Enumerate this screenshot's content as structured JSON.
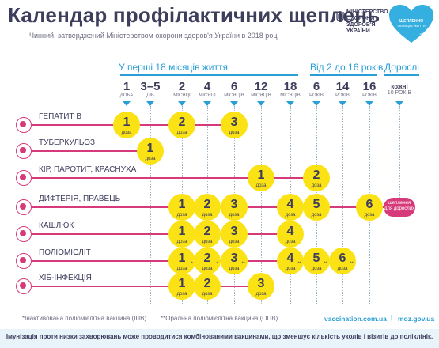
{
  "header": {
    "title": "Календар профілактичних щеплень",
    "subtitle": "Чинний, затверджений Міністерством охорони здоров'я України в 2018 році",
    "ministry": [
      "МІНІСТЕРСТВО",
      "ОХОРОНИ",
      "ЗДОРОВ'Я",
      "УКРАЇНИ"
    ],
    "heart_text": "ЩЕПЛЕННЯ ЗАХИЩАЄ ЖИТТЯ",
    "heart_small": "unicef"
  },
  "groups": [
    {
      "label": "У перші 18 місяців життя"
    },
    {
      "label": "Від 2 до 16 років"
    },
    {
      "label": "Дорослі"
    }
  ],
  "columns": [
    {
      "num": "1",
      "unit": "доба"
    },
    {
      "num": "3–5",
      "unit": "діб"
    },
    {
      "num": "2",
      "unit": "місяці"
    },
    {
      "num": "4",
      "unit": "місяці"
    },
    {
      "num": "6",
      "unit": "місяців"
    },
    {
      "num": "12",
      "unit": "місяців"
    },
    {
      "num": "18",
      "unit": "місяців"
    },
    {
      "num": "6",
      "unit": "років"
    },
    {
      "num": "14",
      "unit": "років"
    },
    {
      "num": "16",
      "unit": "років"
    },
    {
      "num": "кожні",
      "unit": "10 років"
    }
  ],
  "dose_word": "доза",
  "adult_pill": "щеплення для дорослих",
  "rows": [
    {
      "label": "ГЕПАТИТ В",
      "icon": "hepatitis-icon",
      "doses": [
        {
          "col": 0,
          "n": "1"
        },
        {
          "col": 2,
          "n": "2"
        },
        {
          "col": 4,
          "n": "3"
        }
      ]
    },
    {
      "label": "ТУБЕРКУЛЬОЗ",
      "icon": "tuberculosis-icon",
      "doses": [
        {
          "col": 1,
          "n": "1"
        }
      ]
    },
    {
      "label": "КІР, ПАРОТИТ, КРАСНУХА",
      "icon": "measles-icon",
      "doses": [
        {
          "col": 5,
          "n": "1"
        },
        {
          "col": 7,
          "n": "2"
        }
      ]
    },
    {
      "label": "ДИФТЕРІЯ, ПРАВЕЦЬ",
      "icon": "diphtheria-icon",
      "doses": [
        {
          "col": 2,
          "n": "1"
        },
        {
          "col": 3,
          "n": "2"
        },
        {
          "col": 4,
          "n": "3"
        },
        {
          "col": 6,
          "n": "4"
        },
        {
          "col": 7,
          "n": "5"
        },
        {
          "col": 9,
          "n": "6"
        }
      ],
      "adult": true
    },
    {
      "label": "КАШЛЮК",
      "icon": "pertussis-icon",
      "doses": [
        {
          "col": 2,
          "n": "1"
        },
        {
          "col": 3,
          "n": "2"
        },
        {
          "col": 4,
          "n": "3"
        },
        {
          "col": 6,
          "n": "4"
        }
      ]
    },
    {
      "label": "ПОЛІОМІЄЛІТ",
      "icon": "polio-icon",
      "doses": [
        {
          "col": 2,
          "n": "1",
          "mark": "*"
        },
        {
          "col": 3,
          "n": "2",
          "mark": "*"
        },
        {
          "col": 4,
          "n": "3",
          "mark": "**"
        },
        {
          "col": 6,
          "n": "4",
          "mark": "**"
        },
        {
          "col": 7,
          "n": "5",
          "mark": "**"
        },
        {
          "col": 8,
          "n": "6",
          "mark": "**"
        }
      ]
    },
    {
      "label": "ХІБ-ІНФЕКЦІЯ",
      "icon": "hib-icon",
      "doses": [
        {
          "col": 2,
          "n": "1"
        },
        {
          "col": 3,
          "n": "2"
        },
        {
          "col": 5,
          "n": "3"
        }
      ]
    }
  ],
  "footer": {
    "note1": "*Інактивована поліомієлітна вакцина (ІПВ)",
    "note2": "**Оральна поліомієлітна вакцина (ОПВ)",
    "link1": "vaccination.com.ua",
    "link2": "moz.gov.ua",
    "bottom": "Імунізація проти низки захворювань може проводитися комбінованими вакцинами, що зменшує кількість уколів і візитів до поліклінік."
  },
  "colors": {
    "accent": "#2a9fd6",
    "pink": "#d63a7a",
    "yellow": "#fbe214",
    "text": "#3d3d5c"
  }
}
